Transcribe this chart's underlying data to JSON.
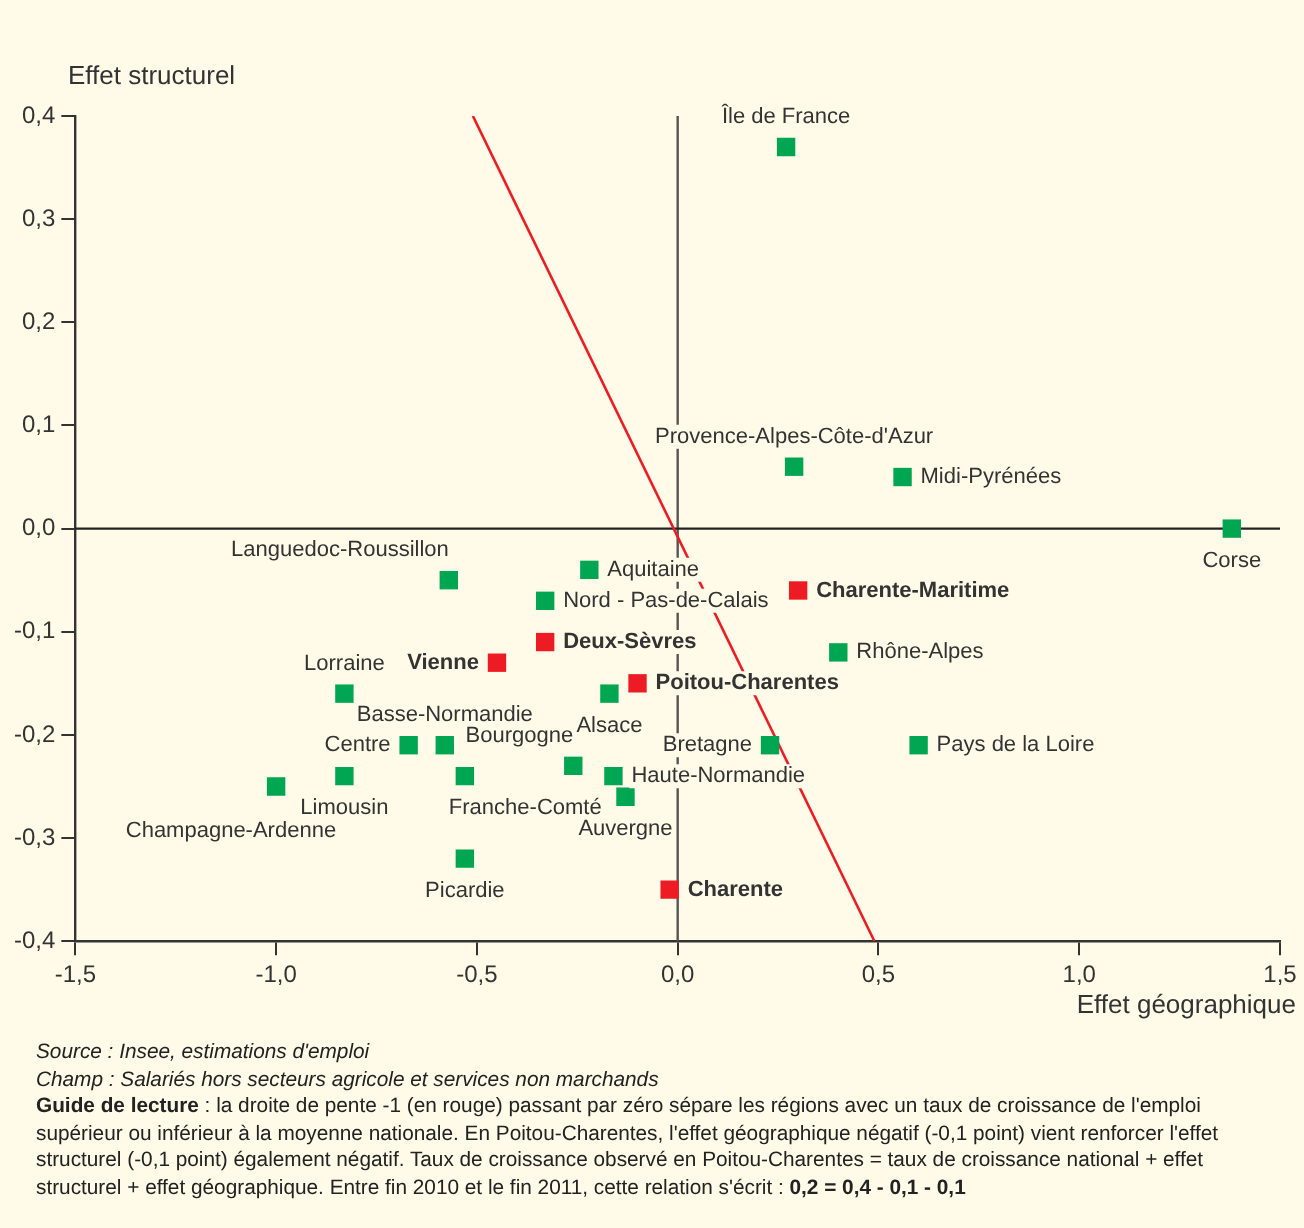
{
  "chart_data": {
    "type": "scatter",
    "xlabel": "Effet géographique",
    "ylabel": "Effet structurel",
    "marker": "square",
    "xlim": [
      -1.5,
      1.5
    ],
    "ylim": [
      -0.4,
      0.4
    ],
    "xticks": [
      {
        "value": -1.5,
        "label": "-1,5"
      },
      {
        "value": -1,
        "label": "-1,0"
      },
      {
        "value": -0.5,
        "label": "-0,5"
      },
      {
        "value": 0,
        "label": "0,0"
      },
      {
        "value": 0.5,
        "label": "0,5"
      },
      {
        "value": 1,
        "label": "1,0"
      },
      {
        "value": 1.5,
        "label": "1,5"
      }
    ],
    "yticks": [
      {
        "value": -0.4,
        "label": "-0,4"
      },
      {
        "value": -0.3,
        "label": "-0,3"
      },
      {
        "value": -0.2,
        "label": "-0,2"
      },
      {
        "value": -0.1,
        "label": "-0,1"
      },
      {
        "value": 0,
        "label": "0,0"
      },
      {
        "value": 0.1,
        "label": "0,1"
      },
      {
        "value": 0.2,
        "label": "0,2"
      },
      {
        "value": 0.3,
        "label": "0,3"
      },
      {
        "value": 0.4,
        "label": "0,4"
      }
    ],
    "ref_lines": [
      {
        "axis": "x",
        "value": 0,
        "color": "#555555"
      },
      {
        "axis": "y",
        "value": 0,
        "color": "#222222"
      }
    ],
    "series": [
      {
        "color": "#00a651",
        "x": [
          0.27,
          0.29,
          0.56,
          1.38,
          -0.57,
          -0.22,
          -0.33,
          0.4,
          -0.17,
          -0.83,
          -0.67,
          -0.58,
          0.23,
          0.6,
          -0.26,
          -1.0,
          -0.83,
          -0.53,
          -0.16,
          -0.13,
          -0.53
        ],
        "values": [
          0.37,
          0.06,
          0.05,
          0.0,
          -0.05,
          -0.04,
          -0.07,
          -0.12,
          -0.16,
          -0.16,
          -0.21,
          -0.21,
          -0.21,
          -0.21,
          -0.23,
          -0.25,
          -0.24,
          -0.24,
          -0.24,
          -0.26,
          -0.32
        ],
        "value_labels": [
          "Île de France",
          "Provence-Alpes-Côte-d'Azur",
          "Midi-Pyrénées",
          "Corse",
          "Languedoc-Roussillon",
          "Aquitaine",
          "Nord - Pas-de-Calais",
          "Rhône-Alpes",
          "Alsace",
          "Lorraine",
          "Centre",
          "Basse-Normandie",
          "Bretagne",
          "Pays de la Loire",
          "Bourgogne",
          "Champagne-Ardenne",
          "Limousin",
          "Franche-Comté",
          "Haute-Normandie",
          "Auvergne",
          "Picardie"
        ]
      },
      {
        "color": "#ed1c24",
        "x": [
          0.3,
          -0.33,
          -0.45,
          -0.1,
          -0.02
        ],
        "values": [
          -0.06,
          -0.11,
          -0.13,
          -0.15,
          -0.35
        ],
        "value_labels": [
          "Charente-Maritime",
          "Deux-Sèvres",
          "Vienne",
          "Poitou-Charentes",
          "Charente"
        ]
      },
      {
        "type": "line",
        "color": "#ed1c24",
        "marker": "none",
        "x": [
          -0.51,
          0.49
        ],
        "values": [
          0.4,
          -0.4
        ]
      }
    ],
    "annotations": [
      "Source : Insee, estimations d'emploi",
      "Champ : Salariés hors secteurs agricole et services non marchands",
      "Guide de lecture : la droite de pente -1 (en rouge) passant par zéro sépare les régions avec un taux de croissance de l'emploi supérieur ou inférieur à la moyenne nationale. En Poitou-Charentes, l'effet géographique négatif (-0,1 point) vient renforcer l'effet structurel (-0,1 point) également négatif. Taux de croissance observé en Poitou-Charentes = taux de croissance national + effet structurel + effet géographique. Entre fin 2010 et le fin 2011, cette relation s'écrit : 0,2 = 0,4 - 0,1 - 0,1"
    ]
  }
}
